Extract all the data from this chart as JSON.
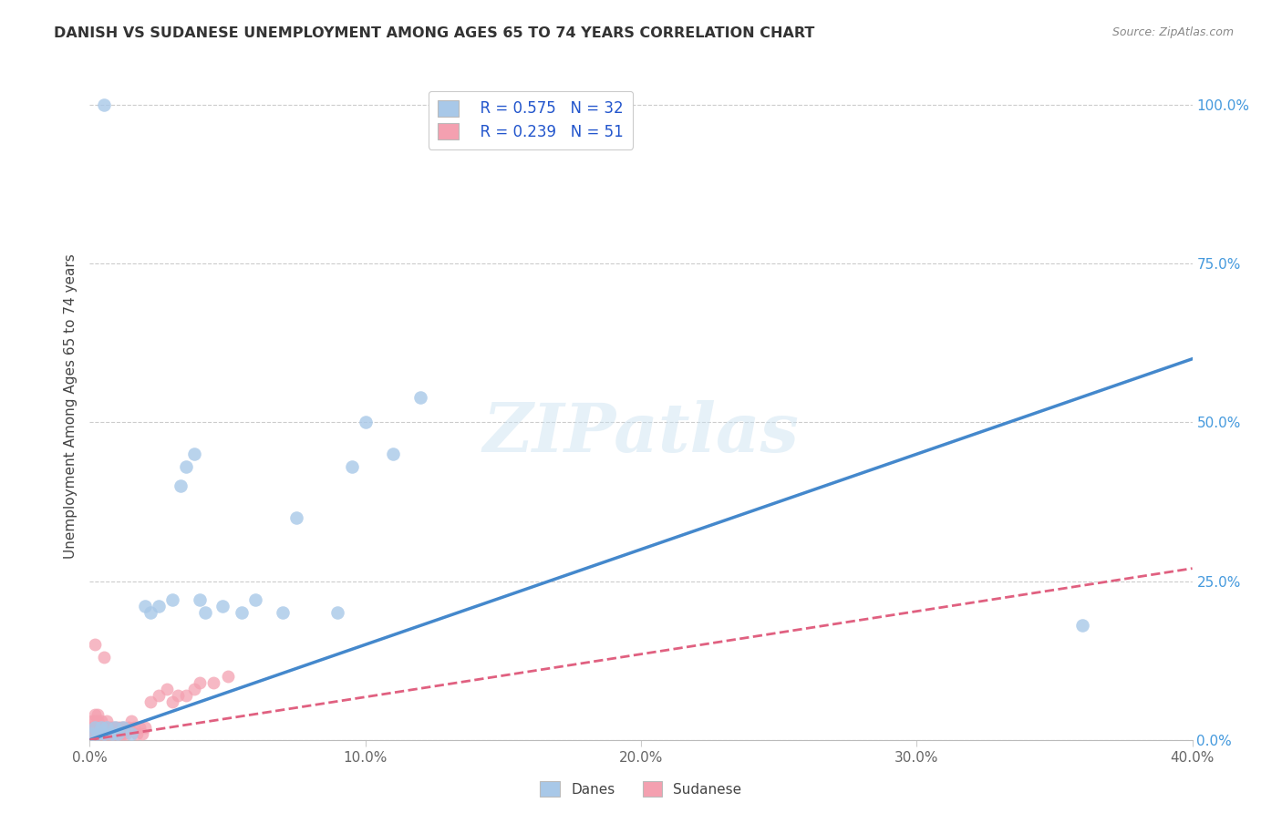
{
  "title": "DANISH VS SUDANESE UNEMPLOYMENT AMONG AGES 65 TO 74 YEARS CORRELATION CHART",
  "source": "Source: ZipAtlas.com",
  "ylabel": "Unemployment Among Ages 65 to 74 years",
  "xlim": [
    0.0,
    0.4
  ],
  "ylim": [
    0.0,
    1.05
  ],
  "xticks": [
    0.0,
    0.1,
    0.2,
    0.3,
    0.4
  ],
  "xticklabels": [
    "0.0%",
    "10.0%",
    "20.0%",
    "30.0%",
    "40.0%"
  ],
  "yticks_right": [
    0.0,
    0.25,
    0.5,
    0.75,
    1.0
  ],
  "yticklabels_right": [
    "0.0%",
    "25.0%",
    "50.0%",
    "75.0%",
    "100.0%"
  ],
  "legend_danes_R": "R = 0.575",
  "legend_danes_N": "N = 32",
  "legend_sudanese_R": "R = 0.239",
  "legend_sudanese_N": "N = 51",
  "danes_color": "#a8c8e8",
  "sudanese_color": "#f4a0b0",
  "danes_line_color": "#4488cc",
  "sudanese_line_color": "#e06080",
  "danes_line_x0": 0.0,
  "danes_line_y0": 0.0,
  "danes_line_x1": 0.4,
  "danes_line_y1": 0.6,
  "sudanese_line_x0": 0.0,
  "sudanese_line_y0": 0.0,
  "sudanese_line_x1": 0.4,
  "sudanese_line_y1": 0.27,
  "danes_x": [
    0.001,
    0.002,
    0.003,
    0.004,
    0.005,
    0.006,
    0.008,
    0.009,
    0.01,
    0.012,
    0.015,
    0.02,
    0.022,
    0.025,
    0.03,
    0.033,
    0.035,
    0.038,
    0.04,
    0.042,
    0.048,
    0.055,
    0.06,
    0.07,
    0.075,
    0.09,
    0.095,
    0.1,
    0.11,
    0.12,
    0.36,
    0.005
  ],
  "danes_y": [
    0.01,
    0.02,
    0.01,
    0.02,
    0.01,
    0.02,
    0.01,
    0.02,
    0.01,
    0.02,
    0.01,
    0.21,
    0.2,
    0.21,
    0.22,
    0.4,
    0.43,
    0.45,
    0.22,
    0.2,
    0.21,
    0.2,
    0.22,
    0.2,
    0.35,
    0.2,
    0.43,
    0.5,
    0.45,
    0.54,
    0.18,
    1.0
  ],
  "sudanese_x": [
    0.001,
    0.001,
    0.001,
    0.002,
    0.002,
    0.002,
    0.002,
    0.003,
    0.003,
    0.003,
    0.003,
    0.004,
    0.004,
    0.004,
    0.005,
    0.005,
    0.005,
    0.006,
    0.006,
    0.006,
    0.007,
    0.007,
    0.008,
    0.008,
    0.009,
    0.009,
    0.01,
    0.01,
    0.011,
    0.011,
    0.012,
    0.012,
    0.013,
    0.014,
    0.015,
    0.016,
    0.017,
    0.018,
    0.019,
    0.02,
    0.022,
    0.025,
    0.028,
    0.03,
    0.032,
    0.035,
    0.038,
    0.04,
    0.045,
    0.05,
    0.002
  ],
  "sudanese_y": [
    0.01,
    0.02,
    0.03,
    0.01,
    0.02,
    0.03,
    0.04,
    0.01,
    0.02,
    0.03,
    0.04,
    0.01,
    0.02,
    0.03,
    0.01,
    0.02,
    0.13,
    0.01,
    0.02,
    0.03,
    0.01,
    0.02,
    0.01,
    0.02,
    0.01,
    0.02,
    0.01,
    0.02,
    0.01,
    0.02,
    0.01,
    0.02,
    0.01,
    0.02,
    0.03,
    0.02,
    0.01,
    0.02,
    0.01,
    0.02,
    0.06,
    0.07,
    0.08,
    0.06,
    0.07,
    0.07,
    0.08,
    0.09,
    0.09,
    0.1,
    0.15
  ],
  "watermark_text": "ZIPatlas",
  "background_color": "#ffffff",
  "grid_color": "#cccccc"
}
